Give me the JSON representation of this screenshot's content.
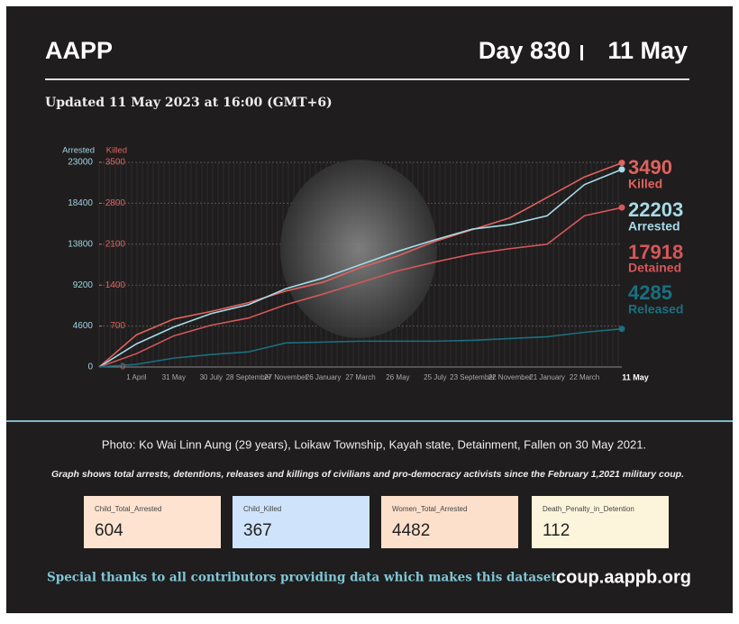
{
  "header": {
    "title": "AAPP",
    "day": "Day 830",
    "date": "11 May",
    "updated": "Updated 11 May 2023 at 16:00 (GMT+6)"
  },
  "chart_data": {
    "type": "line",
    "y_label": "Arrested",
    "y2_label": "Killed",
    "categories": [
      null,
      "1 April",
      "31 May",
      "30 July",
      "28 September",
      "27 November",
      "26 January",
      "27 March",
      "26 May",
      "25 July",
      "23 September",
      "22 November",
      "21 January",
      "22 March",
      "11 May"
    ],
    "ylim": [
      0,
      23000
    ],
    "yticks": [
      0,
      4600,
      9200,
      13800,
      18400,
      23000
    ],
    "y2lim": [
      0,
      3500
    ],
    "y2ticks": [
      0,
      700,
      1400,
      2100,
      2800,
      3500
    ],
    "grid": true,
    "series": [
      {
        "name": "Killed",
        "color": "#e0625f",
        "axis": "y2",
        "values": [
          0,
          550,
          820,
          950,
          1100,
          1300,
          1450,
          1700,
          1900,
          2150,
          2350,
          2550,
          2900,
          3250,
          3490
        ]
      },
      {
        "name": "Arrested",
        "color": "#a6dbe8",
        "values": [
          0,
          2600,
          4500,
          6000,
          7000,
          8800,
          10000,
          11500,
          13000,
          14300,
          15500,
          16000,
          17000,
          20500,
          22203
        ]
      },
      {
        "name": "Detained",
        "color": "#d4575b",
        "values": [
          0,
          1500,
          3500,
          4700,
          5500,
          7000,
          8200,
          9500,
          10800,
          11800,
          12700,
          13300,
          13800,
          17000,
          17918
        ]
      },
      {
        "name": "Released",
        "color": "#1b6f80",
        "values": [
          0,
          300,
          1000,
          1400,
          1700,
          2700,
          2800,
          2900,
          2900,
          2900,
          3000,
          3200,
          3400,
          3900,
          4285
        ]
      }
    ]
  },
  "caption": "Photo: Ko Wai Linn Aung (29 years), Loikaw Township, Kayah state, Detainment, Fallen on 30 May 2021.",
  "note": "Graph shows total arrests, detentions, releases and killings of civilians and pro-democracy activists since the February 1,2021 military coup.",
  "stats": [
    {
      "label": "Child_Total_Arrested",
      "value": 604
    },
    {
      "label": "Child_Killed",
      "value": 367
    },
    {
      "label": "Women_Total_Arrested",
      "value": 4482
    },
    {
      "label": "Death_Penalty_in_Detention",
      "value": 112
    }
  ],
  "footer": {
    "thanks": "Special thanks to all contributors providing data which makes this dataset.",
    "url": "coup.aappb.org"
  }
}
